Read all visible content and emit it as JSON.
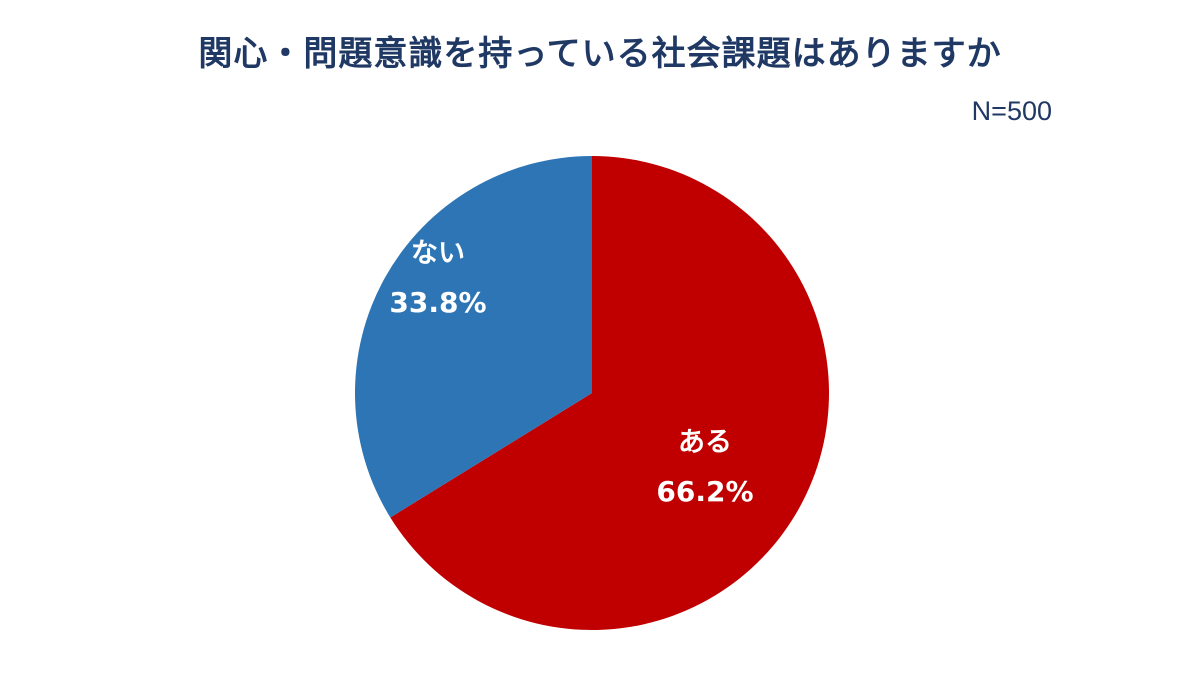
{
  "chart_data": {
    "type": "pie",
    "title": "関心・問題意識を持っている社会課題はありますか",
    "subtitle": "N=500",
    "slices": [
      {
        "label": "ある",
        "value": 66.2,
        "value_label": "66.2%",
        "color": "#c00000"
      },
      {
        "label": "ない",
        "value": 33.8,
        "value_label": "33.8%",
        "color": "#2e75b6"
      }
    ]
  }
}
